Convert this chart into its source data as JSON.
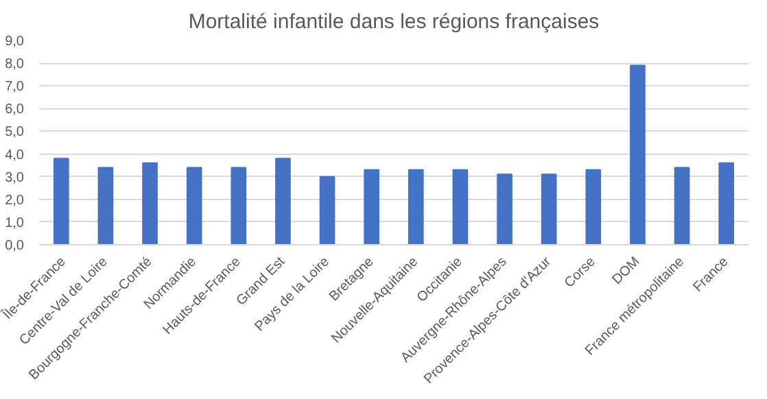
{
  "chart_data": {
    "type": "bar",
    "title": "Mortalité infantile dans les régions françaises",
    "categories": [
      "Île-de-France",
      "Centre-Val de Loire",
      "Bourgogne-Franche-Comté",
      "Normandie",
      "Hauts-de-France",
      "Grand Est",
      "Pays de la Loire",
      "Bretagne",
      "Nouvelle-Aquitaine",
      "Occitanie",
      "Auvergne-Rhône-Alpes",
      "Provence-Alpes-Côte d'Azur",
      "Corse",
      "DOM",
      "France métropolitaine",
      "France"
    ],
    "values": [
      3.8,
      3.4,
      3.6,
      3.4,
      3.4,
      3.8,
      3.0,
      3.3,
      3.3,
      3.3,
      3.1,
      3.1,
      3.3,
      7.9,
      3.4,
      3.6
    ],
    "color": "#4472c4",
    "ylim": [
      0,
      9
    ],
    "yticks": [
      {
        "value": 0,
        "label": "0,0"
      },
      {
        "value": 1,
        "label": "1,0"
      },
      {
        "value": 2,
        "label": "2,0"
      },
      {
        "value": 3,
        "label": "3,0"
      },
      {
        "value": 4,
        "label": "4,0"
      },
      {
        "value": 5,
        "label": "5,0"
      },
      {
        "value": 6,
        "label": "6,0"
      },
      {
        "value": 7,
        "label": "7,0"
      },
      {
        "value": 8,
        "label": "8,0"
      },
      {
        "value": 9,
        "label": "9,0"
      }
    ],
    "grid": "y"
  }
}
